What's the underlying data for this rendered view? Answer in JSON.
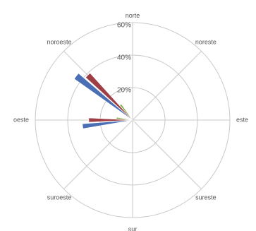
{
  "chart_data": {
    "type": "radar-bar",
    "title": "",
    "directions": [
      "norte",
      "noreste",
      "este",
      "sureste",
      "sur",
      "suroeste",
      "oeste",
      "noroeste"
    ],
    "direction_angles_deg": [
      0,
      45,
      90,
      135,
      180,
      225,
      270,
      315
    ],
    "radial_axis": {
      "min": 0,
      "max": 60,
      "ticks": [
        20,
        40,
        60
      ],
      "tick_labels": [
        "20%",
        "40%",
        "60%"
      ],
      "unit": "%"
    },
    "grid": true,
    "legend": "none",
    "series": [
      {
        "color": "#4a6fb5",
        "bars": [
          {
            "direction": "noroeste",
            "value": 44
          },
          {
            "direction": "oeste",
            "value": 31
          },
          {
            "direction": "sureste",
            "value": 3
          }
        ]
      },
      {
        "color": "#9e3f45",
        "bars": [
          {
            "direction": "noroeste",
            "value": 39
          },
          {
            "direction": "oeste",
            "value": 27
          },
          {
            "direction": "sureste",
            "value": 2
          }
        ]
      },
      {
        "color": "#86b04a",
        "bars": [
          {
            "direction": "noroeste",
            "value": 12
          },
          {
            "direction": "oeste",
            "value": 10
          }
        ]
      }
    ]
  }
}
